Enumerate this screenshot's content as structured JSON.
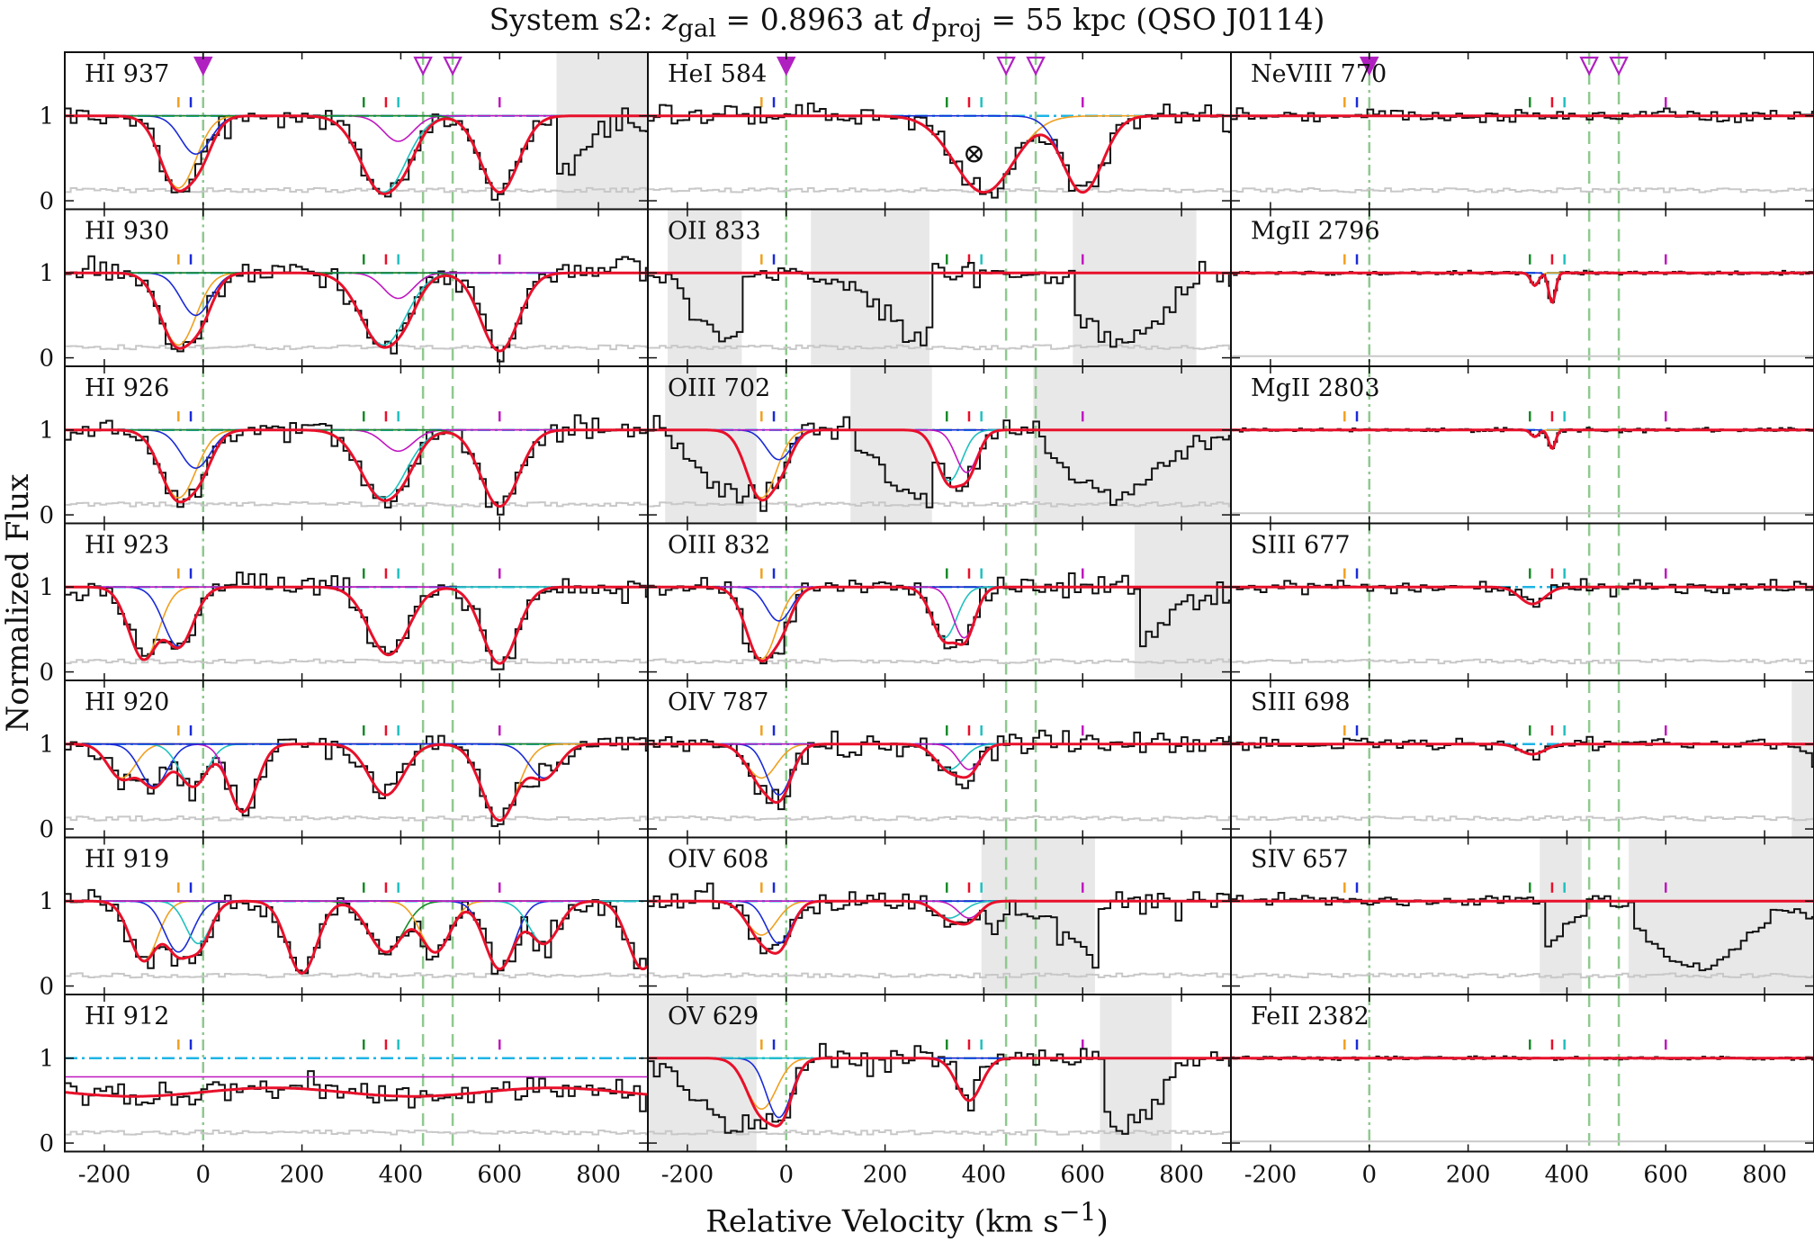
{
  "figure": {
    "title_prefix": "System s2: ",
    "title_z": "z",
    "title_z_sub": "gal",
    "title_mid": " = 0.8963 at ",
    "title_d": "d",
    "title_d_sub": "proj",
    "title_suffix": " = 55 kpc (QSO J0114)",
    "ylabel": "Normalized Flux",
    "xlabel_main": "Relative Velocity (km s",
    "xlabel_sup": "−1",
    "xlabel_end": ")"
  },
  "chart_data": {
    "type": "line",
    "xlim": [
      -280,
      900
    ],
    "ylim": [
      -0.1,
      1.75
    ],
    "x_ticks": [
      -200,
      0,
      200,
      400,
      600,
      800
    ],
    "y_ticks": [
      0,
      1
    ],
    "x_tick_labels": [
      "-200",
      "0",
      "200",
      "400",
      "600",
      "800"
    ],
    "y_tick_labels": [
      "0",
      "1"
    ],
    "grid": false,
    "layout": "7 rows x 3 columns, shared x axis",
    "colors": {
      "data": "#111111",
      "error": "#c8c8c8",
      "model": "#e8102a",
      "continuum": "#1eb4e6",
      "comp_orange": "#f0a020",
      "comp_blue": "#1a2bd8",
      "comp_green": "#1a8a2a",
      "comp_cyan": "#20c0c0",
      "comp_magenta": "#c018c0",
      "comp_darkred": "#c02040",
      "galaxy_marker": "#b020c0",
      "vline": "#8fc98f",
      "masked": "#e8e8e8"
    },
    "galaxy_velocities": [
      0,
      445,
      505
    ],
    "component_tick_velocities": [
      -50,
      -25,
      325,
      370,
      395,
      600
    ],
    "columns": [
      {
        "panels": [
          {
            "label": "HI 937",
            "markers": true,
            "masked": [
              [
                715,
                900
              ]
            ],
            "absorptions": [
              [
                -50,
                0.85,
                35
              ],
              [
                -15,
                0.45,
                30
              ],
              [
                365,
                0.9,
                45
              ],
              [
                395,
                0.3,
                30
              ],
              [
                600,
                0.9,
                38
              ]
            ]
          },
          {
            "label": "HI 930",
            "markers": false,
            "masked": [],
            "absorptions": [
              [
                -50,
                0.85,
                35
              ],
              [
                -15,
                0.5,
                30
              ],
              [
                365,
                0.85,
                45
              ],
              [
                395,
                0.3,
                30
              ],
              [
                600,
                0.92,
                38
              ]
            ]
          },
          {
            "label": "HI 926",
            "markers": false,
            "masked": [],
            "absorptions": [
              [
                -50,
                0.8,
                35
              ],
              [
                -15,
                0.45,
                30
              ],
              [
                365,
                0.8,
                45
              ],
              [
                395,
                0.25,
                30
              ],
              [
                600,
                0.9,
                38
              ]
            ]
          },
          {
            "label": "HI 923",
            "markers": false,
            "masked": [],
            "absorptions": [
              [
                -120,
                0.85,
                30
              ],
              [
                -50,
                0.7,
                30
              ],
              [
                375,
                0.8,
                40
              ],
              [
                600,
                0.9,
                35
              ]
            ]
          },
          {
            "label": "HI 920",
            "markers": false,
            "masked": [],
            "absorptions": [
              [
                -165,
                0.4,
                28
              ],
              [
                -100,
                0.5,
                28
              ],
              [
                -20,
                0.5,
                28
              ],
              [
                80,
                0.8,
                28
              ],
              [
                370,
                0.6,
                35
              ],
              [
                600,
                0.9,
                35
              ],
              [
                690,
                0.4,
                30
              ]
            ]
          },
          {
            "label": "HI 919",
            "markers": false,
            "masked": [],
            "absorptions": [
              [
                -120,
                0.7,
                28
              ],
              [
                -50,
                0.6,
                28
              ],
              [
                -10,
                0.5,
                25
              ],
              [
                200,
                0.85,
                30
              ],
              [
                370,
                0.6,
                35
              ],
              [
                470,
                0.6,
                30
              ],
              [
                600,
                0.8,
                30
              ],
              [
                690,
                0.5,
                30
              ],
              [
                890,
                0.8,
                30
              ]
            ]
          },
          {
            "label": "HI 912",
            "markers": false,
            "masked": [],
            "lls": true,
            "absorptions": []
          }
        ]
      },
      {
        "panels": [
          {
            "label": "HeI 584",
            "markers": true,
            "masked": [],
            "blend_symbol": "⊗",
            "absorptions": [
              [
                400,
                0.9,
                60
              ],
              [
                600,
                0.9,
                40
              ]
            ]
          },
          {
            "label": "OII 833",
            "markers": false,
            "masked": [
              [
                -240,
                -90
              ],
              [
                50,
                290
              ],
              [
                580,
                830
              ]
            ],
            "absorptions": []
          },
          {
            "label": "OIII 702",
            "markers": false,
            "masked": [
              [
                -245,
                -60
              ],
              [
                130,
                295
              ],
              [
                500,
                900
              ]
            ],
            "absorptions": [
              [
                -50,
                0.8,
                30
              ],
              [
                -15,
                0.35,
                25
              ],
              [
                330,
                0.6,
                25
              ],
              [
                365,
                0.5,
                22
              ]
            ]
          },
          {
            "label": "OIII 832",
            "markers": false,
            "masked": [
              [
                705,
                900
              ]
            ],
            "absorptions": [
              [
                -50,
                0.85,
                30
              ],
              [
                -15,
                0.4,
                25
              ],
              [
                320,
                0.6,
                25
              ],
              [
                360,
                0.6,
                22
              ]
            ]
          },
          {
            "label": "OIV 787",
            "markers": false,
            "masked": [],
            "absorptions": [
              [
                -50,
                0.4,
                30
              ],
              [
                -15,
                0.6,
                25
              ],
              [
                330,
                0.3,
                28
              ],
              [
                370,
                0.3,
                22
              ]
            ]
          },
          {
            "label": "OIV 608",
            "markers": false,
            "masked": [
              [
                395,
                625
              ]
            ],
            "absorptions": [
              [
                -50,
                0.4,
                30
              ],
              [
                -15,
                0.5,
                25
              ],
              [
                330,
                0.2,
                28
              ],
              [
                370,
                0.2,
                22
              ]
            ]
          },
          {
            "label": "OV 629",
            "markers": false,
            "masked": [
              [
                -280,
                -60
              ],
              [
                635,
                780
              ]
            ],
            "absorptions": [
              [
                -50,
                0.6,
                30
              ],
              [
                -15,
                0.7,
                25
              ],
              [
                370,
                0.5,
                25
              ]
            ]
          }
        ]
      },
      {
        "panels": [
          {
            "label": "NeVIII 770",
            "markers": true,
            "masked": [],
            "absorptions": []
          },
          {
            "label": "MgII 2796",
            "markers": false,
            "masked": [],
            "absorptions": [
              [
                335,
                0.15,
                8
              ],
              [
                370,
                0.35,
                7
              ]
            ]
          },
          {
            "label": "MgII 2803",
            "markers": false,
            "masked": [],
            "absorptions": [
              [
                335,
                0.08,
                8
              ],
              [
                370,
                0.22,
                7
              ]
            ]
          },
          {
            "label": "SIII 677",
            "markers": false,
            "masked": [],
            "absorptions": [
              [
                330,
                0.2,
                25
              ]
            ]
          },
          {
            "label": "SIII 698",
            "markers": false,
            "masked": [
              [
                855,
                900
              ]
            ],
            "absorptions": [
              [
                330,
                0.12,
                25
              ]
            ]
          },
          {
            "label": "SIV 657",
            "markers": false,
            "masked": [
              [
                345,
                430
              ],
              [
                525,
                900
              ]
            ],
            "absorptions": []
          },
          {
            "label": "FeII 2382",
            "markers": false,
            "masked": [],
            "absorptions": []
          }
        ]
      }
    ]
  }
}
